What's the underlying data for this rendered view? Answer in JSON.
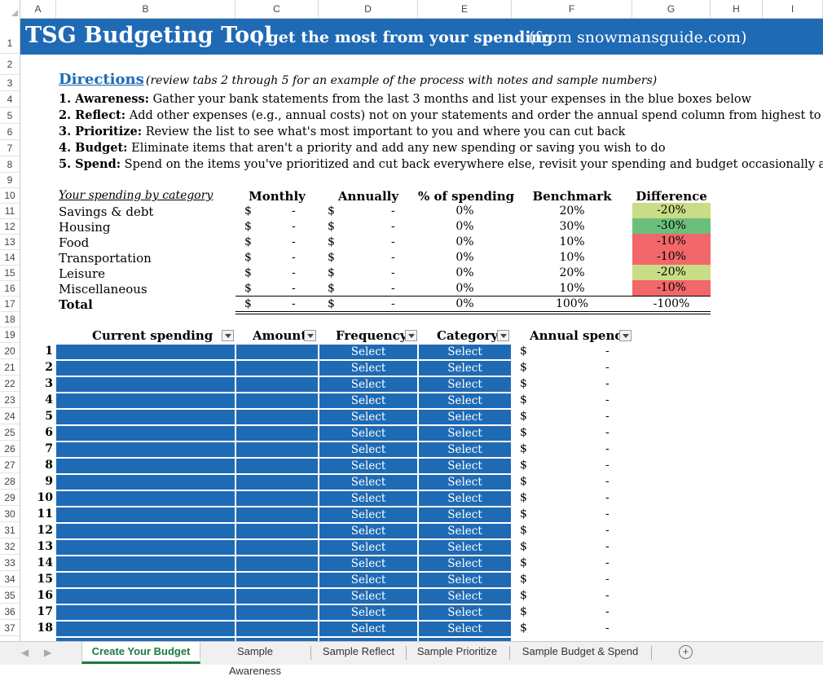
{
  "columns": [
    "A",
    "B",
    "C",
    "D",
    "E",
    "F",
    "G",
    "H",
    "I"
  ],
  "rows": [
    "1",
    "2",
    "3",
    "4",
    "5",
    "6",
    "7",
    "8",
    "9",
    "10",
    "11",
    "12",
    "13",
    "14",
    "15",
    "16",
    "17",
    "18",
    "19",
    "20",
    "21",
    "22",
    "23",
    "24",
    "25",
    "26",
    "27",
    "28",
    "29",
    "30",
    "31",
    "32",
    "33",
    "34",
    "35",
    "36",
    "37"
  ],
  "title": {
    "main": "TSG Budgeting Tool",
    "tagline": "| get the most from your spending",
    "source": "(from snowmansguide.com)"
  },
  "directions": {
    "heading": "Directions",
    "note": "(review tabs 2 through 5 for an example of the process with notes and sample numbers)",
    "steps": [
      {
        "label": "1. Awareness:",
        "text": "Gather your bank statements from the last 3 months and list your expenses in the blue boxes below"
      },
      {
        "label": "2. Reflect:",
        "text": "Add other expenses (e.g., annual costs) not on your statements and order the annual spend column from highest to lowest"
      },
      {
        "label": "3. Prioritize:",
        "text": "Review the list to see what's most important to you and where you can cut back"
      },
      {
        "label": "4. Budget:",
        "text": "Eliminate items that aren't a priority and add any new spending or saving you wish to do"
      },
      {
        "label": "5. Spend:",
        "text": "Spend on the items you've prioritized and cut back everywhere else, revisit your spending and budget occasionally and repeat"
      }
    ]
  },
  "summary": {
    "headers": {
      "category": "Your spending by category",
      "monthly": "Monthly",
      "annually": "Annually",
      "pct": "% of spending",
      "benchmark": "Benchmark",
      "difference": "Difference"
    },
    "currency": "$",
    "dash": "-",
    "rows": [
      {
        "category": "Savings & debt",
        "pct": "0%",
        "benchmark": "20%",
        "difference": "-20%",
        "color": "#c9dd86"
      },
      {
        "category": "Housing",
        "pct": "0%",
        "benchmark": "30%",
        "difference": "-30%",
        "color": "#6cbf7a"
      },
      {
        "category": "Food",
        "pct": "0%",
        "benchmark": "10%",
        "difference": "-10%",
        "color": "#f1676a"
      },
      {
        "category": "Transportation",
        "pct": "0%",
        "benchmark": "10%",
        "difference": "-10%",
        "color": "#f1676a"
      },
      {
        "category": "Leisure",
        "pct": "0%",
        "benchmark": "20%",
        "difference": "-20%",
        "color": "#c9dd86"
      },
      {
        "category": "Miscellaneous",
        "pct": "0%",
        "benchmark": "10%",
        "difference": "-10%",
        "color": "#f1676a"
      }
    ],
    "total": {
      "category": "Total",
      "pct": "0%",
      "benchmark": "100%",
      "difference": "-100%"
    }
  },
  "table": {
    "headers": {
      "current": "Current spending",
      "amount": "Amount",
      "frequency": "Frequency",
      "category": "Category",
      "annual": "Annual spend"
    },
    "select_label": "Select",
    "currency": "$",
    "dash": "-",
    "row_numbers": [
      "1",
      "2",
      "3",
      "4",
      "5",
      "6",
      "7",
      "8",
      "9",
      "10",
      "11",
      "12",
      "13",
      "14",
      "15",
      "16",
      "17",
      "18"
    ]
  },
  "tabs": {
    "items": [
      "Create Your Budget",
      "Sample Awareness",
      "Sample Reflect",
      "Sample Prioritize",
      "Sample Budget & Spend"
    ],
    "active": "Create Your Budget",
    "add_icon": "plus-circle-icon"
  },
  "colors": {
    "title_bar": "#1f6ab5",
    "input_cells": "#1f6ab5",
    "active_tab": "#1c7a3e"
  }
}
